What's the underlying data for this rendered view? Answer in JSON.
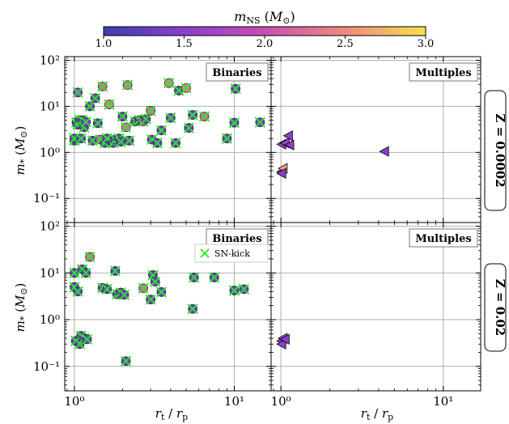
{
  "colorbar": {
    "label": "m_NS (M_⊙)",
    "ticks": [
      "1.0",
      "1.5",
      "2.0",
      "2.5",
      "3.0"
    ],
    "tick_values": [
      1.0,
      1.5,
      2.0,
      2.5,
      3.0
    ],
    "range": [
      1.0,
      3.0
    ],
    "colors": [
      "#3b3fb0",
      "#8b3fcf",
      "#c94fb0",
      "#ef8a82",
      "#f3e24c"
    ]
  },
  "rows": [
    {
      "label": "Z = 0.0002"
    },
    {
      "label": "Z = 0.02"
    }
  ],
  "xlabel": "r_t / r_p",
  "ylabel": "m_* (M_⊙)",
  "x_ticks": [
    "10⁰",
    "10¹"
  ],
  "y_ticks": [
    "10⁻¹",
    "10⁰",
    "10¹",
    "10²"
  ],
  "xlim": [
    0.87,
    17
  ],
  "ylim": [
    0.03,
    120
  ],
  "panel_titles": {
    "binaries": "Binaries",
    "multiples": "Multiples"
  },
  "legend": {
    "sn_kick": "SN-kick"
  },
  "chart_data": [
    {
      "type": "scatter",
      "xscale": "log",
      "yscale": "log",
      "title": "Binaries",
      "row": "Z = 0.0002",
      "grid": true,
      "sn_kick": true,
      "points": [
        [
          1.0,
          1.8,
          1.3
        ],
        [
          1.0,
          2.0,
          1.3
        ],
        [
          1.03,
          4.5,
          1.3
        ],
        [
          1.05,
          4.0,
          1.3
        ],
        [
          1.08,
          5.0,
          1.3
        ],
        [
          1.1,
          2.0,
          1.3
        ],
        [
          1.12,
          5.0,
          1.3
        ],
        [
          1.15,
          3.5,
          1.3
        ],
        [
          1.18,
          4.6,
          1.4
        ],
        [
          1.05,
          20.0,
          1.5
        ],
        [
          1.25,
          10.0,
          1.3
        ],
        [
          1.3,
          1.8,
          1.3
        ],
        [
          1.35,
          15.0,
          1.3
        ],
        [
          1.4,
          4.3,
          1.3
        ],
        [
          1.45,
          1.9,
          2.1
        ],
        [
          1.5,
          27.0,
          2.2
        ],
        [
          1.55,
          1.6,
          1.3
        ],
        [
          1.6,
          2.0,
          1.3
        ],
        [
          1.65,
          11.0,
          2.4
        ],
        [
          1.75,
          1.6,
          1.3
        ],
        [
          1.8,
          1.9,
          1.3
        ],
        [
          1.9,
          2.0,
          1.3
        ],
        [
          1.95,
          1.7,
          1.3
        ],
        [
          2.0,
          6.0,
          1.3
        ],
        [
          2.1,
          3.5,
          2.3
        ],
        [
          2.15,
          29.0,
          2.3
        ],
        [
          2.2,
          1.8,
          1.3
        ],
        [
          2.4,
          4.7,
          1.3
        ],
        [
          2.55,
          5.0,
          1.3
        ],
        [
          2.7,
          4.7,
          2.2
        ],
        [
          2.8,
          5.3,
          1.3
        ],
        [
          3.0,
          8.0,
          2.2
        ],
        [
          3.05,
          1.9,
          1.3
        ],
        [
          3.3,
          1.6,
          1.3
        ],
        [
          3.5,
          3.0,
          1.3
        ],
        [
          3.9,
          32.0,
          2.4
        ],
        [
          4.0,
          5.6,
          1.3
        ],
        [
          4.3,
          1.6,
          1.3
        ],
        [
          4.5,
          22.0,
          1.3
        ],
        [
          5.0,
          25.0,
          2.4
        ],
        [
          5.2,
          3.4,
          1.3
        ],
        [
          5.5,
          6.5,
          1.3
        ],
        [
          6.5,
          6.0,
          2.2
        ],
        [
          9.0,
          2.0,
          1.3
        ],
        [
          10.0,
          4.4,
          1.3
        ],
        [
          10.2,
          24.0,
          1.3
        ],
        [
          14.5,
          4.5,
          1.3
        ]
      ]
    },
    {
      "type": "scatter",
      "xscale": "log",
      "yscale": "log",
      "title": "Multiples",
      "row": "Z = 0.0002",
      "grid": true,
      "sn_kick": false,
      "points": [
        [
          1.0,
          0.38,
          1.7
        ],
        [
          1.02,
          0.45,
          2.6
        ],
        [
          1.0,
          0.35,
          1.5
        ],
        [
          1.0,
          1.5,
          1.6
        ],
        [
          1.05,
          1.6,
          1.6
        ],
        [
          1.1,
          2.3,
          1.5
        ],
        [
          1.12,
          1.45,
          1.5
        ],
        [
          4.3,
          1.05,
          1.5
        ]
      ]
    },
    {
      "type": "scatter",
      "xscale": "log",
      "yscale": "log",
      "title": "Binaries",
      "row": "Z = 0.02",
      "grid": true,
      "sn_kick": true,
      "points": [
        [
          1.0,
          10.0,
          1.3
        ],
        [
          1.0,
          5.0,
          1.3
        ],
        [
          1.02,
          0.35,
          1.3
        ],
        [
          1.05,
          4.0,
          1.3
        ],
        [
          1.08,
          0.3,
          1.3
        ],
        [
          1.1,
          0.45,
          1.3
        ],
        [
          1.12,
          12.0,
          1.3
        ],
        [
          1.15,
          0.4,
          1.3
        ],
        [
          1.18,
          10.0,
          1.3
        ],
        [
          1.2,
          0.38,
          1.3
        ],
        [
          1.25,
          22.0,
          2.2
        ],
        [
          1.5,
          4.8,
          1.3
        ],
        [
          1.6,
          4.5,
          1.3
        ],
        [
          1.8,
          11.0,
          1.3
        ],
        [
          1.85,
          3.5,
          1.3
        ],
        [
          1.95,
          3.8,
          1.3
        ],
        [
          2.05,
          3.4,
          1.3
        ],
        [
          2.1,
          0.13,
          1.3
        ],
        [
          2.7,
          4.7,
          2.2
        ],
        [
          3.0,
          2.7,
          1.3
        ],
        [
          3.1,
          9.0,
          1.3
        ],
        [
          3.2,
          6.5,
          1.3
        ],
        [
          3.5,
          3.9,
          1.3
        ],
        [
          5.5,
          1.7,
          1.3
        ],
        [
          5.6,
          8.0,
          1.3
        ],
        [
          7.5,
          8.0,
          1.3
        ],
        [
          10.0,
          4.2,
          1.3
        ],
        [
          11.5,
          4.5,
          1.3
        ]
      ]
    },
    {
      "type": "scatter",
      "xscale": "log",
      "yscale": "log",
      "title": "Multiples",
      "row": "Z = 0.02",
      "grid": true,
      "sn_kick": false,
      "points": [
        [
          1.0,
          0.35,
          1.7
        ],
        [
          1.02,
          0.4,
          1.6
        ],
        [
          1.0,
          0.3,
          1.5
        ],
        [
          1.05,
          0.38,
          1.5
        ]
      ]
    }
  ]
}
